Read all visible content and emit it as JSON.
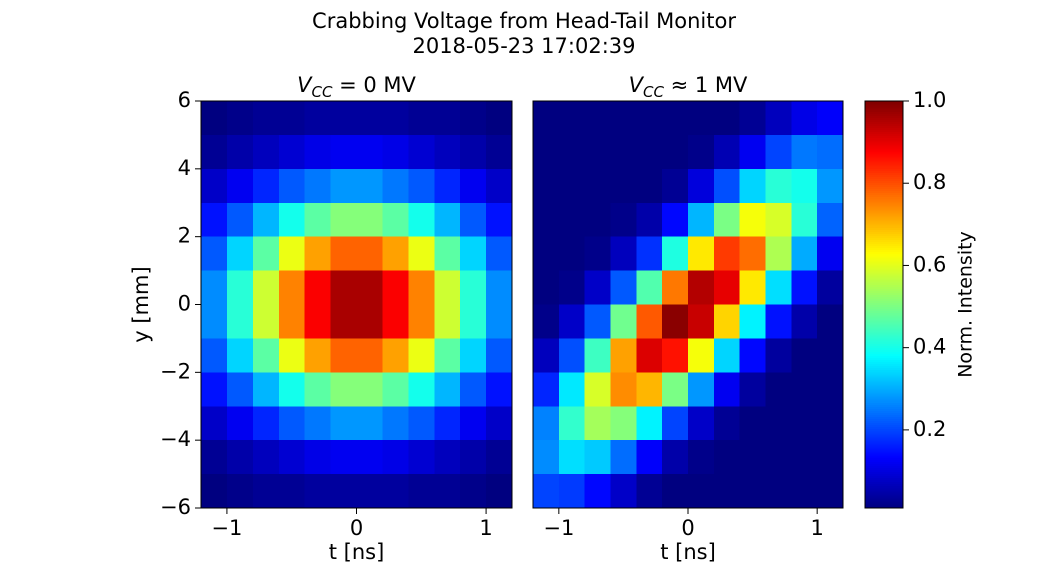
{
  "title": "Crabbing Voltage from Head-Tail Monitor",
  "subtitle": "2018-05-23 17:02:39",
  "colorbar": {
    "label": "Norm. Intensity",
    "colormap": "jet",
    "clim": [
      0.01,
      1.0
    ],
    "ticks": [
      0.2,
      0.4,
      0.6,
      0.8,
      {
        "value": 1.0,
        "label": "1.0"
      }
    ]
  },
  "chart_data": [
    {
      "type": "heatmap",
      "title": {
        "symbol": "V",
        "subscript": "CC",
        "relation": " = 0 MV"
      },
      "xlabel": "t [ns]",
      "ylabel": "y [mm]",
      "xlim": [
        -1.2,
        1.2
      ],
      "ylim": [
        -6,
        6
      ],
      "xticks": [
        {
          "value": -1,
          "label": "−1"
        },
        0,
        1
      ],
      "yticks": [
        {
          "value": -6,
          "label": "−6"
        },
        {
          "value": -4,
          "label": "−4"
        },
        {
          "value": -2,
          "label": "−2"
        },
        0,
        2,
        4,
        6
      ],
      "x": [
        -1.1,
        -0.9,
        -0.7,
        -0.5,
        -0.3,
        -0.1,
        0.1,
        0.3,
        0.5,
        0.7,
        0.9,
        1.1
      ],
      "y": [
        5.5,
        4.5,
        3.5,
        2.5,
        1.5,
        0.5,
        -0.5,
        -1.5,
        -2.5,
        -3.5,
        -4.5,
        -5.5
      ],
      "z": [
        [
          0.01,
          0.02,
          0.03,
          0.03,
          0.04,
          0.04,
          0.04,
          0.04,
          0.03,
          0.03,
          0.02,
          0.01
        ],
        [
          0.03,
          0.05,
          0.07,
          0.09,
          0.11,
          0.12,
          0.12,
          0.11,
          0.09,
          0.07,
          0.05,
          0.03
        ],
        [
          0.08,
          0.12,
          0.17,
          0.22,
          0.25,
          0.28,
          0.28,
          0.25,
          0.22,
          0.17,
          0.12,
          0.08
        ],
        [
          0.15,
          0.22,
          0.31,
          0.4,
          0.47,
          0.51,
          0.51,
          0.47,
          0.4,
          0.31,
          0.22,
          0.15
        ],
        [
          0.22,
          0.34,
          0.47,
          0.61,
          0.72,
          0.78,
          0.78,
          0.72,
          0.61,
          0.47,
          0.34,
          0.22
        ],
        [
          0.27,
          0.42,
          0.58,
          0.75,
          0.88,
          0.96,
          0.96,
          0.88,
          0.75,
          0.58,
          0.42,
          0.27
        ],
        [
          0.27,
          0.42,
          0.58,
          0.75,
          0.88,
          0.96,
          0.96,
          0.88,
          0.75,
          0.58,
          0.42,
          0.27
        ],
        [
          0.22,
          0.34,
          0.47,
          0.61,
          0.72,
          0.78,
          0.78,
          0.72,
          0.61,
          0.47,
          0.34,
          0.22
        ],
        [
          0.15,
          0.22,
          0.31,
          0.4,
          0.47,
          0.51,
          0.51,
          0.47,
          0.4,
          0.31,
          0.22,
          0.15
        ],
        [
          0.08,
          0.12,
          0.17,
          0.22,
          0.25,
          0.28,
          0.28,
          0.25,
          0.22,
          0.17,
          0.12,
          0.08
        ],
        [
          0.03,
          0.05,
          0.07,
          0.09,
          0.11,
          0.12,
          0.12,
          0.11,
          0.09,
          0.07,
          0.05,
          0.03
        ],
        [
          0.01,
          0.02,
          0.03,
          0.03,
          0.04,
          0.04,
          0.04,
          0.04,
          0.03,
          0.03,
          0.02,
          0.01
        ]
      ]
    },
    {
      "type": "heatmap",
      "title": {
        "symbol": "V",
        "subscript": "CC",
        "relation": " ≈ 1 MV"
      },
      "xlabel": "t [ns]",
      "xlim": [
        -1.2,
        1.2
      ],
      "ylim": [
        -6,
        6
      ],
      "xticks": [
        {
          "value": -1,
          "label": "−1"
        },
        0,
        1
      ],
      "x": [
        -1.1,
        -0.9,
        -0.7,
        -0.5,
        -0.3,
        -0.1,
        0.1,
        0.3,
        0.5,
        0.7,
        0.9,
        1.1
      ],
      "y": [
        5.5,
        4.5,
        3.5,
        2.5,
        1.5,
        0.5,
        -0.5,
        -1.5,
        -2.5,
        -3.5,
        -4.5,
        -5.5
      ],
      "z": [
        [
          0,
          0,
          0,
          0,
          0,
          0,
          0,
          0.01,
          0.03,
          0.07,
          0.11,
          0.13
        ],
        [
          0,
          0,
          0,
          0,
          0,
          0.01,
          0.02,
          0.06,
          0.12,
          0.2,
          0.25,
          0.24
        ],
        [
          0,
          0,
          0,
          0,
          0.01,
          0.03,
          0.1,
          0.21,
          0.34,
          0.42,
          0.4,
          0.28
        ],
        [
          0,
          0,
          0,
          0.02,
          0.05,
          0.14,
          0.31,
          0.5,
          0.62,
          0.59,
          0.42,
          0.23
        ],
        [
          0,
          0,
          0.02,
          0.07,
          0.18,
          0.41,
          0.65,
          0.82,
          0.77,
          0.55,
          0.3,
          0.12
        ],
        [
          0,
          0.02,
          0.08,
          0.22,
          0.46,
          0.76,
          0.95,
          0.9,
          0.65,
          0.35,
          0.15,
          0.04
        ],
        [
          0.02,
          0.08,
          0.22,
          0.49,
          0.79,
          0.99,
          0.93,
          0.67,
          0.37,
          0.15,
          0.05,
          0.01
        ],
        [
          0.07,
          0.21,
          0.44,
          0.72,
          0.91,
          0.86,
          0.62,
          0.34,
          0.14,
          0.04,
          0.01,
          0
        ],
        [
          0.17,
          0.36,
          0.59,
          0.74,
          0.7,
          0.5,
          0.28,
          0.12,
          0.04,
          0.01,
          0,
          0
        ],
        [
          0.26,
          0.43,
          0.54,
          0.51,
          0.37,
          0.2,
          0.08,
          0.03,
          0.01,
          0,
          0,
          0
        ],
        [
          0.27,
          0.35,
          0.33,
          0.24,
          0.13,
          0.05,
          0.02,
          0,
          0,
          0,
          0,
          0
        ],
        [
          0.2,
          0.19,
          0.14,
          0.08,
          0.03,
          0.01,
          0,
          0,
          0,
          0,
          0,
          0
        ]
      ]
    }
  ]
}
